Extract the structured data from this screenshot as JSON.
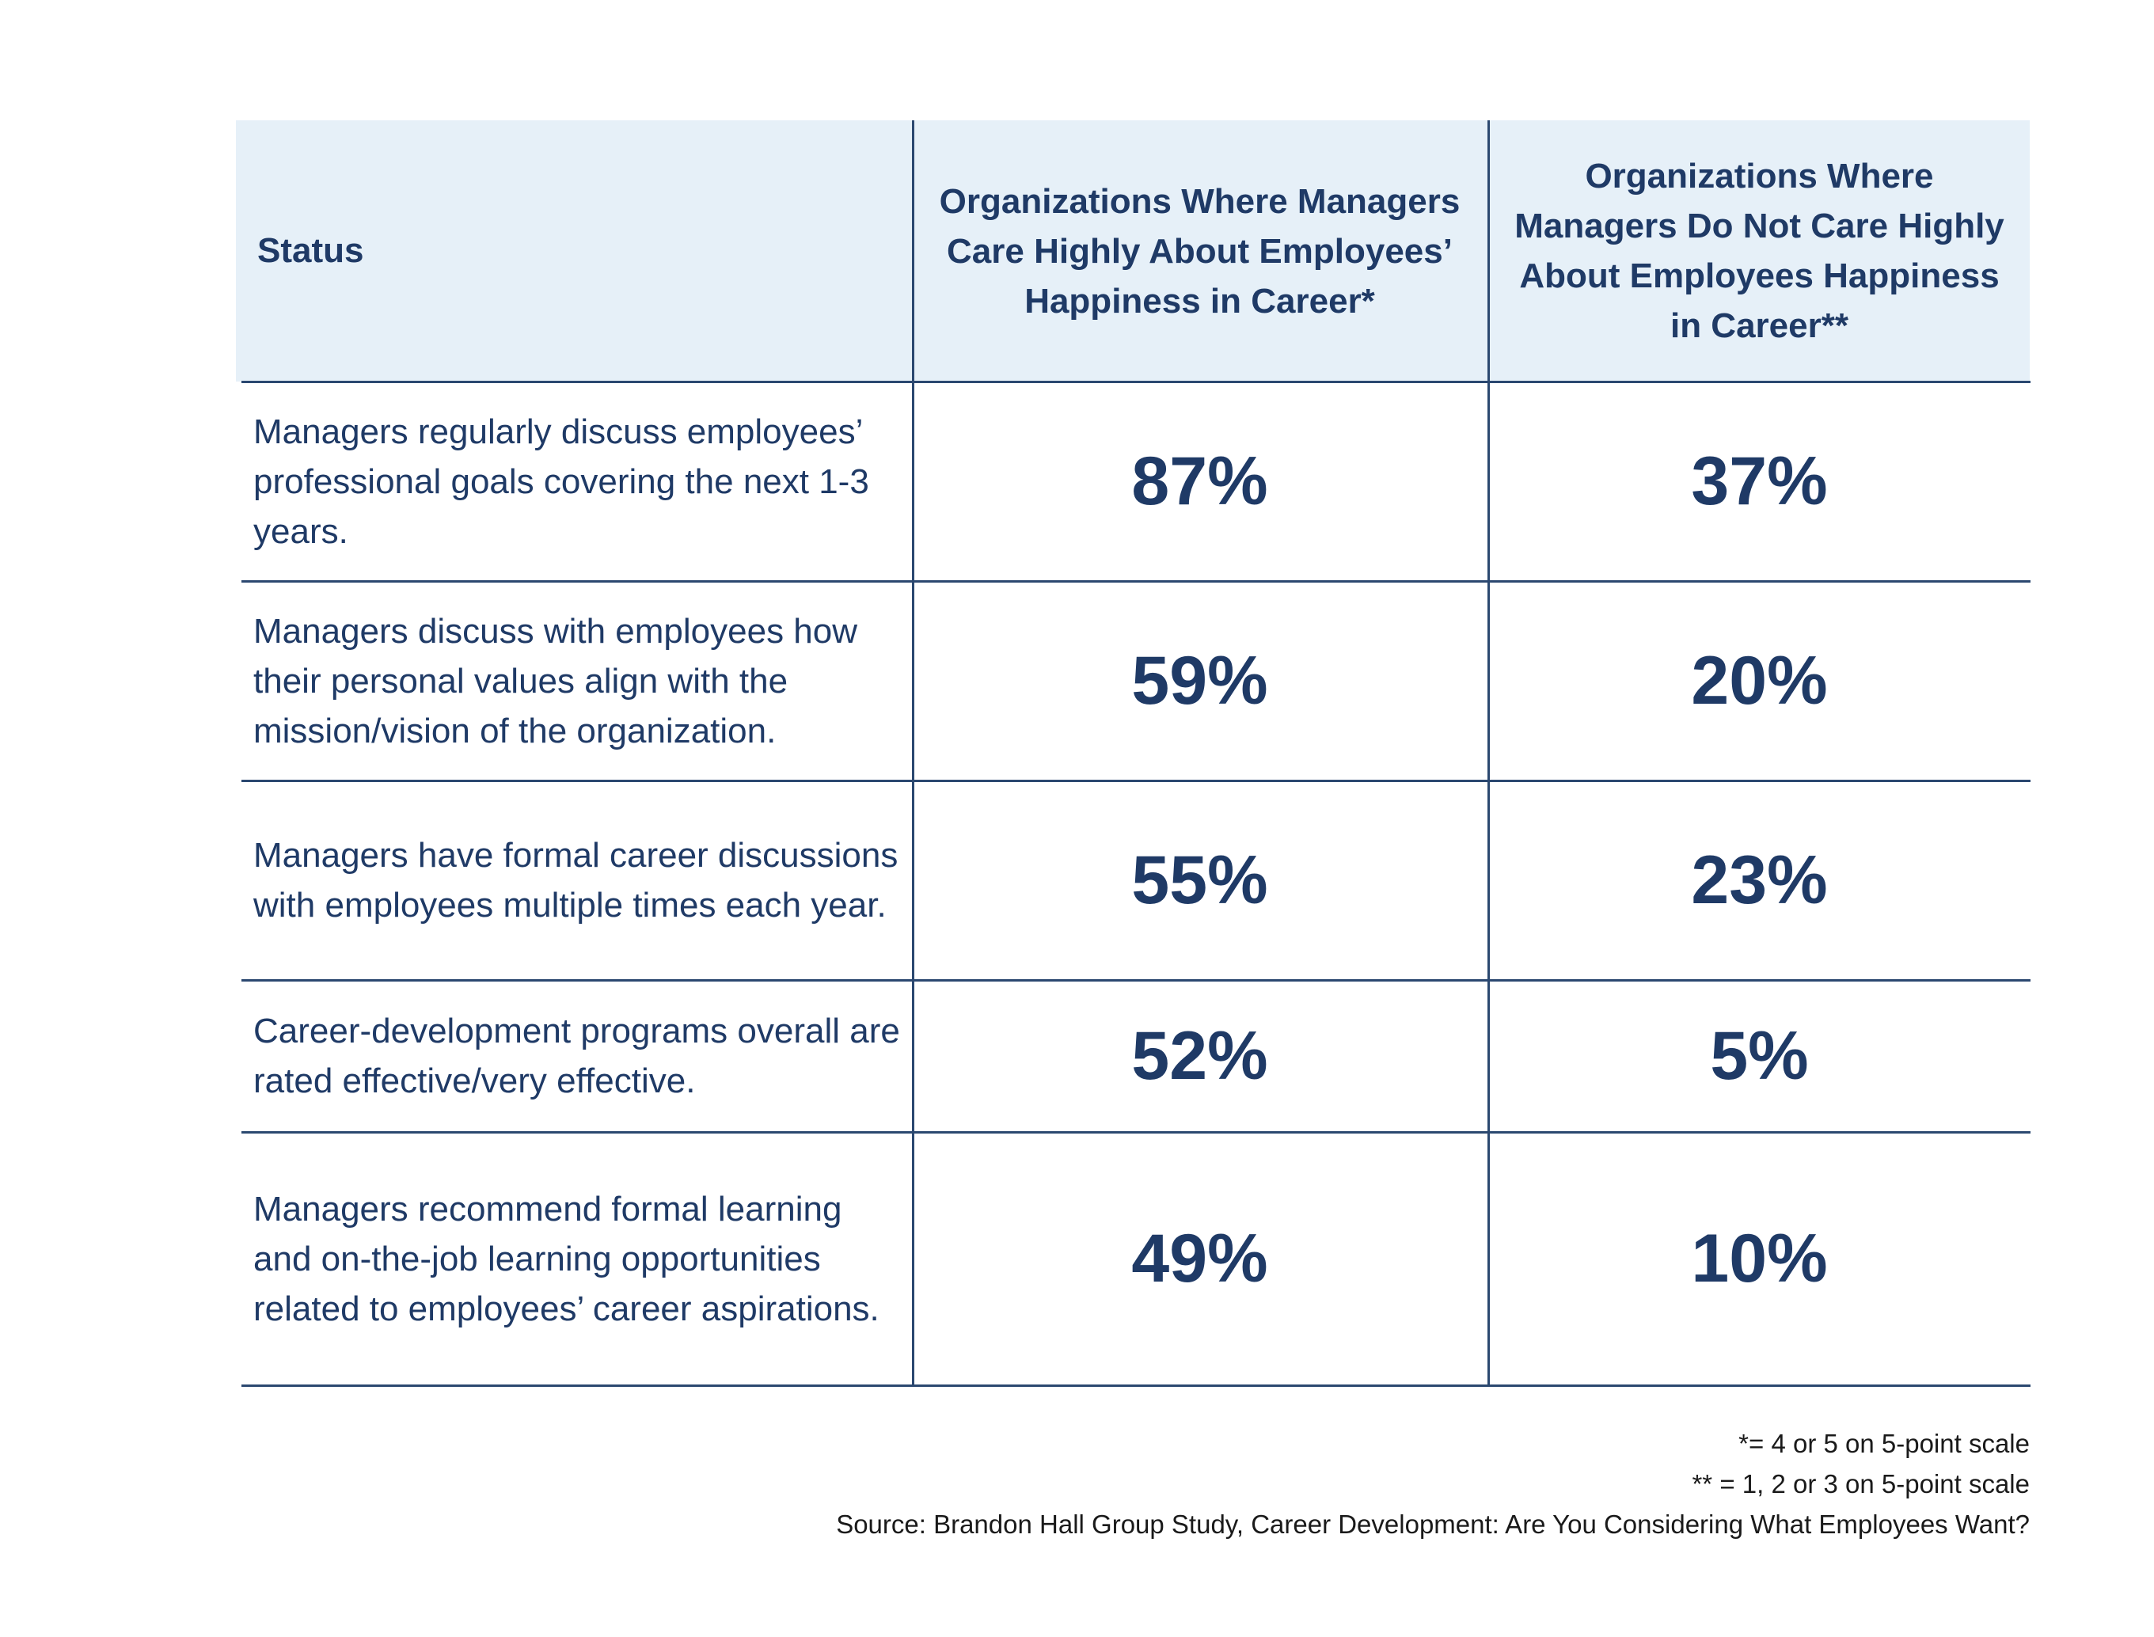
{
  "chart_data": {
    "type": "table",
    "columns": [
      "Status",
      "Organizations Where Managers Care Highly About Employees’ Happiness in Career*",
      "Organizations Where Managers Do Not Care Highly About Employees Happiness in Career**"
    ],
    "rows": [
      {
        "status": "Managers regularly discuss employees’ professional goals covering the next 1-3 years.",
        "care_high": "87%",
        "care_low": "37%"
      },
      {
        "status": "Managers discuss with employees how their personal values align with the mission/vision of the organization.",
        "care_high": "59%",
        "care_low": "20%"
      },
      {
        "status": "Managers have formal career discussions with employees multiple times each year.",
        "care_high": "55%",
        "care_low": "23%"
      },
      {
        "status": "Career-development programs overall are rated effective/very effective.",
        "care_high": "52%",
        "care_low": "5%"
      },
      {
        "status": "Managers recommend formal learning and on-the-job learning opportunities related to employees’ career aspirations.",
        "care_high": "49%",
        "care_low": "10%"
      }
    ],
    "footnotes": [
      "*= 4 or 5 on 5-point scale",
      "** = 1, 2 or 3 on 5-point scale",
      "Source: Brandon Hall Group Study, Career Development: Are You Considering What Employees Want?"
    ]
  },
  "colors": {
    "header_background": "#e6f0f8",
    "text": "#1f3a66",
    "rules": "#2b4870"
  }
}
